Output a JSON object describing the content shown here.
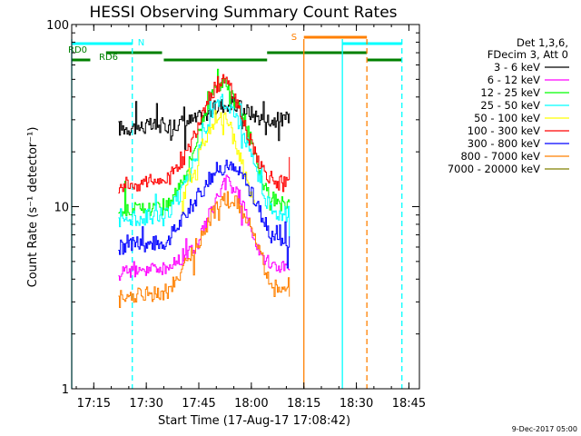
{
  "chart_data": {
    "type": "line",
    "title": "HESSI Observing Summary Count Rates",
    "xlabel": "Start Time (17-Aug-17 17:08:42)",
    "ylabel": "Count Rate (s⁻¹ detector⁻¹)",
    "xlim": [
      "17:08:42",
      "18:48:00"
    ],
    "ylim": [
      1,
      100
    ],
    "yscale": "log",
    "x_ticks": [
      "17:15",
      "17:30",
      "17:45",
      "18:00",
      "18:15",
      "18:30",
      "18:45"
    ],
    "y_ticks": [
      "1",
      "10",
      "100"
    ],
    "legend_header": [
      "Det 1,3,6,",
      "FDecim 3, Att 0"
    ],
    "legend_position": "right",
    "series": [
      {
        "name": "3 - 6 keV",
        "color": "#000000",
        "x": [
          "17:22",
          "17:36",
          "17:44",
          "17:50",
          "17:53",
          "17:57",
          "18:02",
          "18:05",
          "18:11"
        ],
        "y": [
          27,
          28,
          30,
          35,
          37,
          35,
          31,
          30,
          30
        ]
      },
      {
        "name": "6 - 12 keV",
        "color": "#ff00ff",
        "x": [
          "17:22",
          "17:36",
          "17:44",
          "17:50",
          "17:53",
          "17:57",
          "18:02",
          "18:05",
          "18:11"
        ],
        "y": [
          4.5,
          4.6,
          6,
          11,
          14,
          11,
          6,
          4.8,
          4.6
        ]
      },
      {
        "name": "12 - 25 keV",
        "color": "#00ff00",
        "x": [
          "17:22",
          "17:36",
          "17:42",
          "17:47",
          "17:51",
          "17:54",
          "17:58",
          "18:03",
          "18:06",
          "18:11"
        ],
        "y": [
          9.5,
          10,
          17,
          35,
          48,
          46,
          30,
          14,
          11,
          10
        ]
      },
      {
        "name": "25 - 50 keV",
        "color": "#00ffff",
        "x": [
          "17:22",
          "17:36",
          "17:42",
          "17:47",
          "17:51",
          "17:54",
          "17:58",
          "18:03",
          "18:06",
          "18:11"
        ],
        "y": [
          8.5,
          9,
          14,
          28,
          38,
          36,
          25,
          12,
          9.5,
          9
        ]
      },
      {
        "name": "50 - 100 keV",
        "color": "#ffff00",
        "x": [
          "17:40",
          "17:46",
          "17:50",
          "17:53",
          "17:57",
          "18:01"
        ],
        "y": [
          10,
          22,
          32,
          30,
          18,
          10
        ]
      },
      {
        "name": "100 - 300 keV",
        "color": "#ff0000",
        "x": [
          "17:22",
          "17:36",
          "17:42",
          "17:47",
          "17:51",
          "17:54",
          "17:58",
          "18:03",
          "18:06",
          "18:11"
        ],
        "y": [
          13,
          14,
          20,
          38,
          50,
          45,
          28,
          16,
          14,
          13
        ]
      },
      {
        "name": "300 - 800 keV",
        "color": "#0000ff",
        "x": [
          "17:22",
          "17:36",
          "17:44",
          "17:50",
          "17:53",
          "17:57",
          "18:02",
          "18:05",
          "18:11"
        ],
        "y": [
          6,
          6.5,
          11,
          16,
          17,
          15,
          10,
          7,
          6.5
        ]
      },
      {
        "name": "800 - 7000 keV",
        "color": "#ff8000",
        "x": [
          "17:22",
          "17:36",
          "17:44",
          "17:50",
          "17:53",
          "17:57",
          "18:02",
          "18:05",
          "18:11"
        ],
        "y": [
          3.2,
          3.4,
          6,
          10,
          11,
          10,
          6,
          3.8,
          3.5
        ]
      },
      {
        "name": "7000 - 20000 keV",
        "color": "#808000",
        "x": [],
        "y": []
      }
    ],
    "flag_bars": [
      {
        "label": "N",
        "color": "#00ffff",
        "segments": [
          [
            "17:08:42",
            "17:26:00"
          ],
          [
            "18:26:00",
            "18:43:00"
          ]
        ]
      },
      {
        "label": "S",
        "color": "#ff8000",
        "segments": [
          [
            "18:15:00",
            "18:33:00"
          ]
        ]
      },
      {
        "label": "RD0",
        "color": "#008000",
        "segments": [
          [
            "17:18:30",
            "17:34:30"
          ],
          [
            "18:04:30",
            "18:33:00"
          ]
        ]
      },
      {
        "label": "RD6",
        "color": "#008000",
        "segments": [
          [
            "17:08:42",
            "17:14:00"
          ],
          [
            "17:35:00",
            "18:04:30"
          ],
          [
            "18:33:00",
            "18:43:00"
          ]
        ]
      }
    ],
    "vlines": [
      {
        "x": "17:08:42",
        "color": "#00ffff",
        "style": "solid"
      },
      {
        "x": "17:26:00",
        "color": "#00ffff",
        "style": "dashed"
      },
      {
        "x": "18:15:00",
        "color": "#ff8000",
        "style": "solid"
      },
      {
        "x": "18:26:00",
        "color": "#00ffff",
        "style": "solid"
      },
      {
        "x": "18:33:00",
        "color": "#ff8000",
        "style": "dashed"
      },
      {
        "x": "18:43:00",
        "color": "#00ffff",
        "style": "dashed"
      }
    ]
  },
  "footer": "9-Dec-2017 05:00"
}
